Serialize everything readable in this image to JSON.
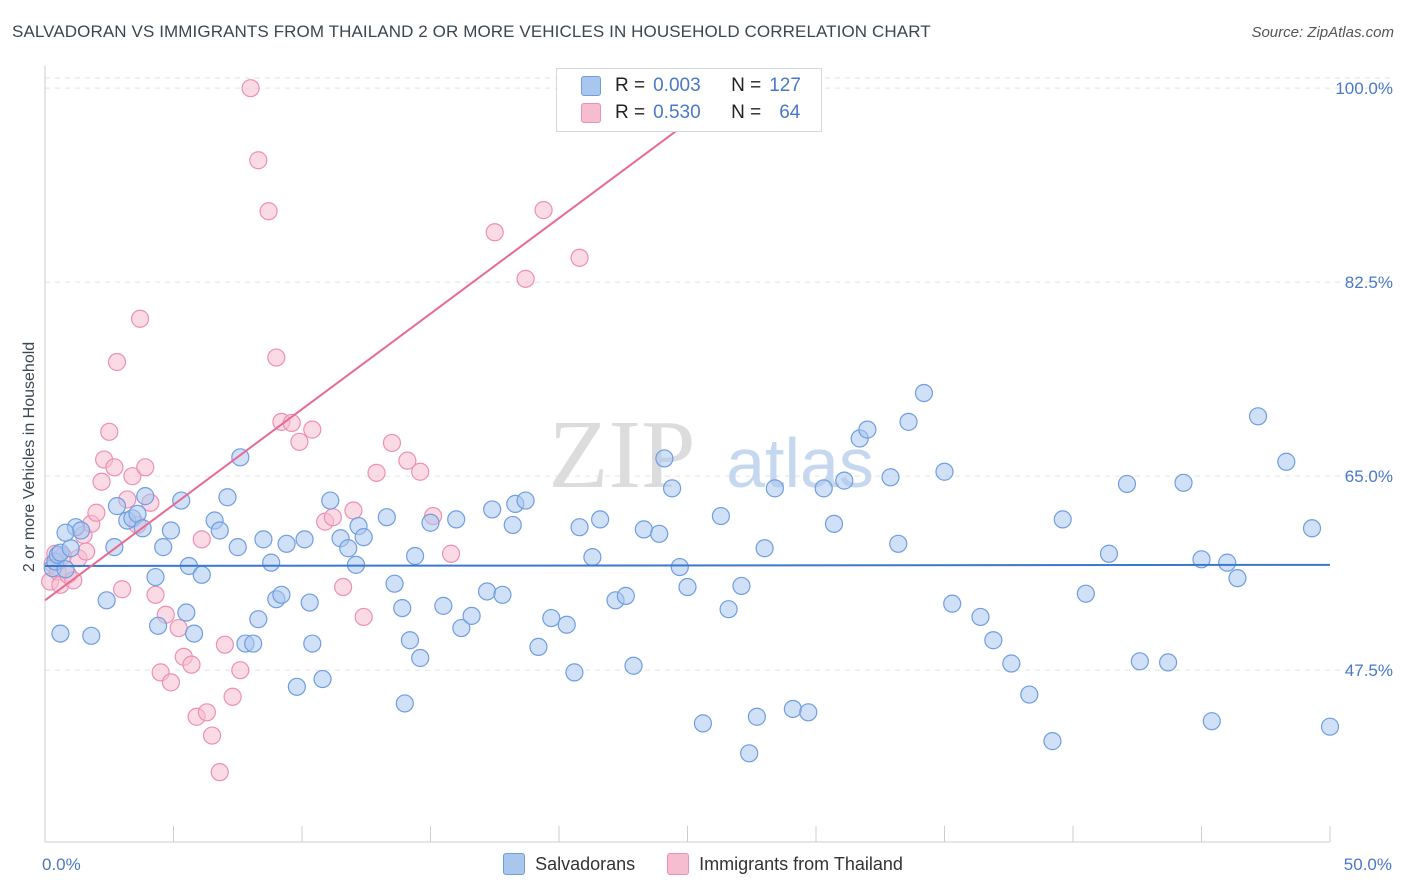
{
  "header": {
    "title": "SALVADORAN VS IMMIGRANTS FROM THAILAND 2 OR MORE VEHICLES IN HOUSEHOLD CORRELATION CHART",
    "source": "Source: ZipAtlas.com"
  },
  "watermark": {
    "zip": "ZIP",
    "atlas": "atlas"
  },
  "legend": {
    "rows": [
      {
        "r_label": "R =",
        "r_value": "0.003",
        "n_label": "N =",
        "n_value": "127"
      },
      {
        "r_label": "R =",
        "r_value": "0.530",
        "n_label": "N =",
        "n_value": "64"
      }
    ]
  },
  "bottom_legend": {
    "series1": "Salvadorans",
    "series2": "Immigrants from Thailand"
  },
  "colors": {
    "blue_fill": "#a9c6ee",
    "blue_stroke": "#6f9ee0",
    "blue_line": "#3a78d0",
    "pink_fill": "#f6bdd0",
    "pink_stroke": "#ef8fb0",
    "pink_line": "#e86a93",
    "tick_text": "#4a78c8",
    "grid": "#e2e2e2"
  },
  "chart_data": {
    "type": "scatter",
    "title": "SALVADORAN VS IMMIGRANTS FROM THAILAND 2 OR MORE VEHICLES IN HOUSEHOLD CORRELATION CHART",
    "xlabel": "",
    "ylabel": "2 or more Vehicles in Household",
    "xlim": [
      0,
      50
    ],
    "ylim": [
      32.0,
      102.0
    ],
    "x_tick_labels": [
      {
        "value": 0,
        "label": "0.0%"
      },
      {
        "value": 50,
        "label": "50.0%"
      }
    ],
    "y_ticks": [
      {
        "value": 100.0,
        "label": "100.0%"
      },
      {
        "value": 82.5,
        "label": "82.5%"
      },
      {
        "value": 65.0,
        "label": "65.0%"
      },
      {
        "value": 47.5,
        "label": "47.5%"
      }
    ],
    "series": [
      {
        "name": "Salvadorans",
        "r": 0.003,
        "n": 127,
        "trend": {
          "x": [
            0.0,
            50.0
          ],
          "y": [
            56.9,
            57.0
          ]
        },
        "points": [
          [
            0.3,
            56.7
          ],
          [
            0.4,
            57.3
          ],
          [
            0.5,
            57.9
          ],
          [
            0.6,
            58.1
          ],
          [
            0.8,
            56.6
          ],
          [
            1.0,
            58.5
          ],
          [
            1.2,
            60.4
          ],
          [
            1.4,
            60.1
          ],
          [
            0.8,
            59.9
          ],
          [
            0.6,
            50.8
          ],
          [
            1.8,
            50.6
          ],
          [
            2.4,
            53.8
          ],
          [
            2.7,
            58.6
          ],
          [
            2.8,
            62.3
          ],
          [
            3.2,
            61.0
          ],
          [
            3.4,
            61.2
          ],
          [
            3.6,
            61.6
          ],
          [
            3.8,
            60.3
          ],
          [
            3.9,
            63.2
          ],
          [
            4.3,
            55.9
          ],
          [
            4.4,
            51.5
          ],
          [
            4.6,
            58.6
          ],
          [
            4.9,
            60.1
          ],
          [
            5.3,
            62.8
          ],
          [
            5.5,
            52.7
          ],
          [
            5.6,
            56.9
          ],
          [
            5.8,
            50.8
          ],
          [
            6.1,
            56.1
          ],
          [
            6.6,
            61.0
          ],
          [
            6.8,
            60.1
          ],
          [
            7.1,
            63.1
          ],
          [
            7.5,
            58.6
          ],
          [
            7.6,
            66.7
          ],
          [
            7.8,
            49.9
          ],
          [
            8.1,
            49.9
          ],
          [
            8.3,
            52.1
          ],
          [
            8.5,
            59.3
          ],
          [
            8.8,
            57.2
          ],
          [
            9.0,
            53.9
          ],
          [
            9.2,
            54.3
          ],
          [
            9.4,
            58.9
          ],
          [
            9.8,
            46.0
          ],
          [
            10.1,
            59.3
          ],
          [
            10.3,
            53.6
          ],
          [
            10.4,
            49.9
          ],
          [
            10.8,
            46.7
          ],
          [
            11.1,
            62.8
          ],
          [
            11.5,
            59.4
          ],
          [
            11.8,
            58.5
          ],
          [
            12.1,
            57.0
          ],
          [
            12.2,
            60.5
          ],
          [
            12.4,
            59.5
          ],
          [
            13.3,
            61.3
          ],
          [
            13.6,
            55.3
          ],
          [
            13.9,
            53.1
          ],
          [
            14.0,
            44.5
          ],
          [
            14.2,
            50.2
          ],
          [
            14.4,
            57.8
          ],
          [
            14.6,
            48.6
          ],
          [
            15.0,
            60.8
          ],
          [
            15.5,
            53.3
          ],
          [
            16.0,
            61.1
          ],
          [
            16.2,
            51.3
          ],
          [
            16.6,
            52.4
          ],
          [
            17.2,
            54.6
          ],
          [
            17.4,
            62.0
          ],
          [
            17.8,
            54.3
          ],
          [
            18.2,
            60.6
          ],
          [
            18.3,
            62.5
          ],
          [
            18.7,
            62.8
          ],
          [
            19.2,
            49.6
          ],
          [
            19.7,
            52.2
          ],
          [
            20.3,
            51.6
          ],
          [
            20.6,
            47.3
          ],
          [
            20.8,
            60.4
          ],
          [
            21.3,
            57.7
          ],
          [
            21.6,
            61.1
          ],
          [
            22.2,
            53.8
          ],
          [
            22.6,
            54.2
          ],
          [
            22.9,
            47.9
          ],
          [
            23.3,
            60.2
          ],
          [
            23.9,
            59.8
          ],
          [
            24.1,
            66.6
          ],
          [
            24.4,
            63.9
          ],
          [
            24.7,
            56.8
          ],
          [
            25.0,
            55.0
          ],
          [
            25.6,
            42.7
          ],
          [
            26.3,
            61.4
          ],
          [
            26.6,
            53.0
          ],
          [
            27.1,
            55.1
          ],
          [
            27.4,
            40.0
          ],
          [
            27.7,
            43.3
          ],
          [
            28.0,
            58.5
          ],
          [
            28.4,
            63.9
          ],
          [
            29.1,
            44.0
          ],
          [
            29.7,
            43.7
          ],
          [
            30.3,
            63.9
          ],
          [
            30.7,
            60.7
          ],
          [
            31.1,
            64.6
          ],
          [
            31.7,
            68.4
          ],
          [
            32.0,
            69.2
          ],
          [
            32.9,
            64.9
          ],
          [
            33.2,
            58.9
          ],
          [
            33.6,
            69.9
          ],
          [
            34.2,
            72.5
          ],
          [
            35.0,
            65.4
          ],
          [
            35.3,
            53.5
          ],
          [
            36.4,
            52.3
          ],
          [
            36.9,
            50.2
          ],
          [
            37.6,
            48.1
          ],
          [
            38.3,
            45.3
          ],
          [
            39.2,
            41.1
          ],
          [
            39.6,
            61.1
          ],
          [
            40.5,
            54.4
          ],
          [
            41.4,
            58.0
          ],
          [
            42.1,
            64.3
          ],
          [
            42.6,
            48.3
          ],
          [
            43.7,
            48.2
          ],
          [
            44.3,
            64.4
          ],
          [
            45.0,
            57.5
          ],
          [
            45.4,
            42.9
          ],
          [
            46.0,
            57.2
          ],
          [
            46.4,
            55.8
          ],
          [
            47.2,
            70.4
          ],
          [
            48.3,
            66.3
          ],
          [
            49.3,
            60.3
          ],
          [
            50.0,
            42.4
          ]
        ]
      },
      {
        "name": "Immigrants from Thailand",
        "r": 0.53,
        "n": 64,
        "trend": {
          "x": [
            0.0,
            25.0
          ],
          "y": [
            53.8,
            96.9
          ]
        },
        "points": [
          [
            0.2,
            55.5
          ],
          [
            0.3,
            57.1
          ],
          [
            0.4,
            58.0
          ],
          [
            0.5,
            56.4
          ],
          [
            0.6,
            55.2
          ],
          [
            0.7,
            57.8
          ],
          [
            0.9,
            56.1
          ],
          [
            1.1,
            55.6
          ],
          [
            1.3,
            57.6
          ],
          [
            1.5,
            59.7
          ],
          [
            1.6,
            58.2
          ],
          [
            1.8,
            60.7
          ],
          [
            2.0,
            61.7
          ],
          [
            2.2,
            64.5
          ],
          [
            2.3,
            66.5
          ],
          [
            2.5,
            69.0
          ],
          [
            2.7,
            65.8
          ],
          [
            2.8,
            75.3
          ],
          [
            3.0,
            54.8
          ],
          [
            3.2,
            62.9
          ],
          [
            3.4,
            65.0
          ],
          [
            3.6,
            60.6
          ],
          [
            3.7,
            79.2
          ],
          [
            3.9,
            65.8
          ],
          [
            4.1,
            62.6
          ],
          [
            4.3,
            54.3
          ],
          [
            4.5,
            47.3
          ],
          [
            4.7,
            52.5
          ],
          [
            4.9,
            46.4
          ],
          [
            5.2,
            51.3
          ],
          [
            5.4,
            48.7
          ],
          [
            5.7,
            48.0
          ],
          [
            5.9,
            43.3
          ],
          [
            6.1,
            59.3
          ],
          [
            6.3,
            43.7
          ],
          [
            6.5,
            41.6
          ],
          [
            6.8,
            38.3
          ],
          [
            7.0,
            49.8
          ],
          [
            7.3,
            45.1
          ],
          [
            7.6,
            47.5
          ],
          [
            8.0,
            100.0
          ],
          [
            8.3,
            93.5
          ],
          [
            8.7,
            88.9
          ],
          [
            9.0,
            75.7
          ],
          [
            9.2,
            69.9
          ],
          [
            9.6,
            69.8
          ],
          [
            9.9,
            68.1
          ],
          [
            10.4,
            69.2
          ],
          [
            10.9,
            60.9
          ],
          [
            11.2,
            61.3
          ],
          [
            11.6,
            55.0
          ],
          [
            12.0,
            61.9
          ],
          [
            12.4,
            52.3
          ],
          [
            12.9,
            65.3
          ],
          [
            13.5,
            68.0
          ],
          [
            14.1,
            66.4
          ],
          [
            14.6,
            65.4
          ],
          [
            15.1,
            61.4
          ],
          [
            15.8,
            58.0
          ],
          [
            17.5,
            87.0
          ],
          [
            18.7,
            82.8
          ],
          [
            19.4,
            89.0
          ],
          [
            20.8,
            84.7
          ],
          [
            21.7,
            98.7
          ]
        ]
      }
    ]
  }
}
